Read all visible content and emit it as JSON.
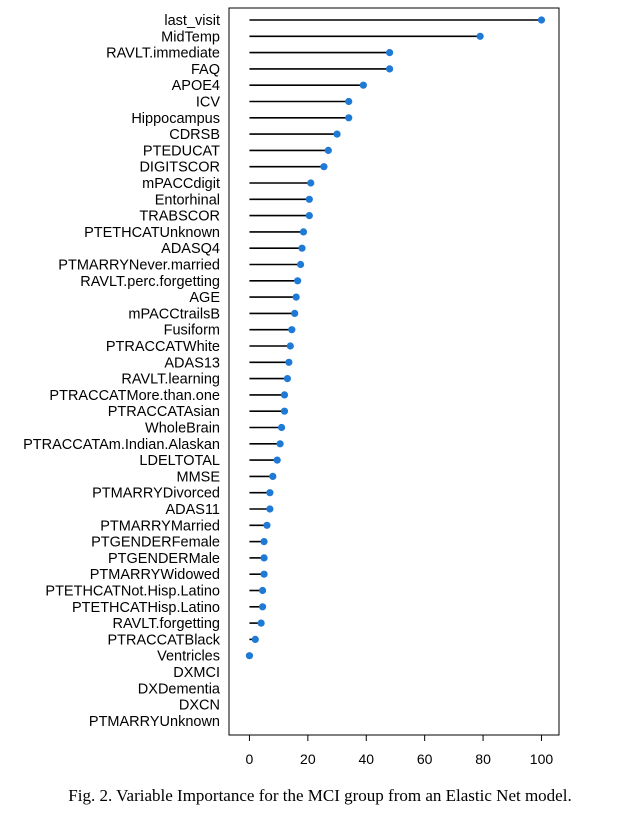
{
  "caption": "Fig. 2. Variable Importance for the MCI group from an Elastic Net model.",
  "chart_data": {
    "type": "lollipop",
    "orientation": "horizontal",
    "categories": [
      "last_visit",
      "MidTemp",
      "RAVLT.immediate",
      "FAQ",
      "APOE4",
      "ICV",
      "Hippocampus",
      "CDRSB",
      "PTEDUCAT",
      "DIGITSCOR",
      "mPACCdigit",
      "Entorhinal",
      "TRABSCOR",
      "PTETHCATUnknown",
      "ADASQ4",
      "PTMARRYNever.married",
      "RAVLT.perc.forgetting",
      "AGE",
      "mPACCtrailsB",
      "Fusiform",
      "PTRACCATWhite",
      "ADAS13",
      "RAVLT.learning",
      "PTRACCATMore.than.one",
      "PTRACCATAsian",
      "WholeBrain",
      "PTRACCATAm.Indian.Alaskan",
      "LDELTOTAL",
      "MMSE",
      "PTMARRYDivorced",
      "ADAS11",
      "PTMARRYMarried",
      "PTGENDERFemale",
      "PTGENDERMale",
      "PTMARRYWidowed",
      "PTETHCATNot.Hisp.Latino",
      "PTETHCATHisp.Latino",
      "RAVLT.forgetting",
      "PTRACCATBlack",
      "Ventricles",
      "DXMCI",
      "DXDementia",
      "DXCN",
      "PTMARRYUnknown"
    ],
    "values": [
      100,
      79,
      48,
      48,
      39,
      34,
      34,
      30,
      27,
      25.5,
      21,
      20.5,
      20.5,
      18.5,
      18,
      17.5,
      16.5,
      16,
      15.5,
      14.5,
      14,
      13.5,
      13,
      12,
      12,
      11,
      10.5,
      9.5,
      8,
      7,
      7,
      6,
      5,
      5,
      5,
      4.5,
      4.5,
      4,
      2,
      0,
      null,
      null,
      null,
      null
    ],
    "xlim": [
      -7,
      106
    ],
    "xticks": [
      0,
      20,
      40,
      60,
      80,
      100
    ],
    "grid": false,
    "marker_color": "#1f7ad6",
    "stem_color": "#000000"
  }
}
